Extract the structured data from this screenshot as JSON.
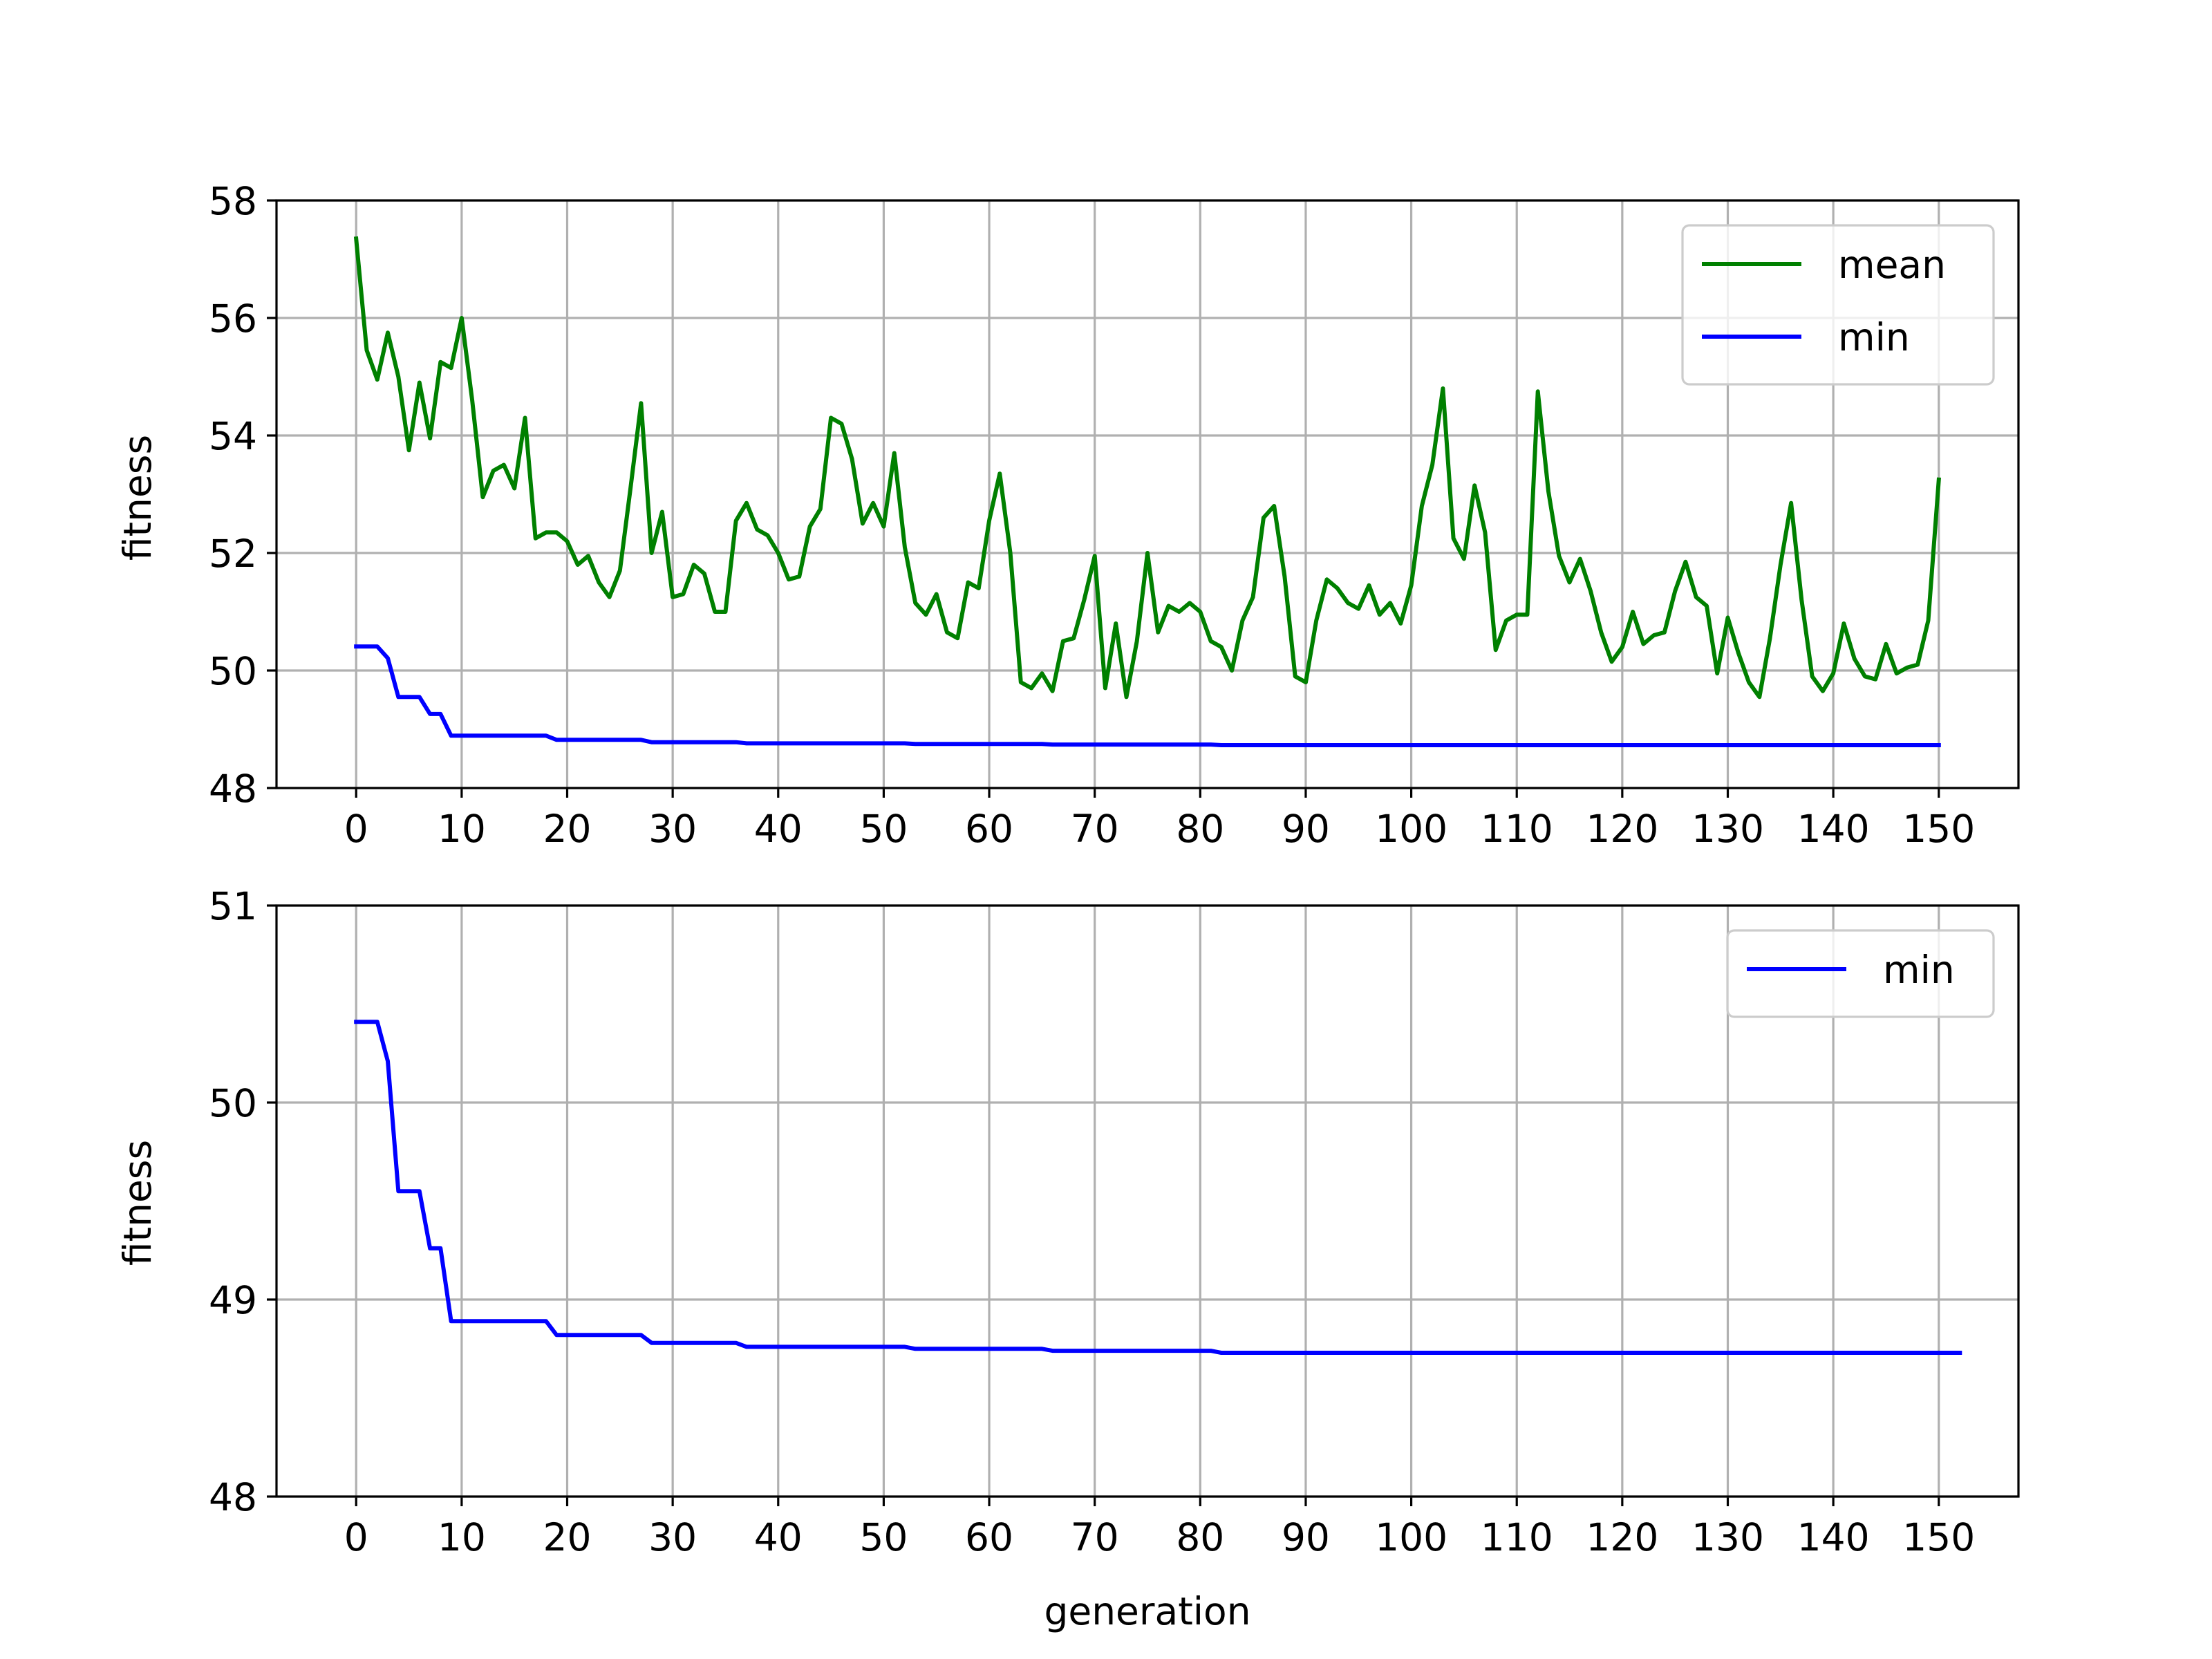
{
  "chart_data": [
    {
      "type": "line",
      "xlabel": "",
      "ylabel": "fitness",
      "xlim": [
        -7.55,
        157.55
      ],
      "ylim": [
        48,
        58
      ],
      "xticks": [
        0,
        10,
        20,
        30,
        40,
        50,
        60,
        70,
        80,
        90,
        100,
        110,
        120,
        130,
        140,
        150
      ],
      "yticks": [
        48,
        50,
        52,
        54,
        56,
        58
      ],
      "grid": true,
      "legend": "top-right",
      "series": [
        {
          "name": "mean",
          "color": "#008000",
          "values": [
            57.35,
            55.45,
            54.95,
            55.75,
            55.0,
            53.75,
            54.9,
            53.95,
            55.25,
            55.15,
            56.0,
            54.6,
            52.95,
            53.4,
            53.5,
            53.1,
            54.3,
            52.25,
            52.35,
            52.35,
            52.2,
            51.8,
            51.95,
            51.5,
            51.25,
            51.7,
            53.1,
            54.55,
            52.0,
            52.7,
            51.25,
            51.3,
            51.8,
            51.65,
            51.0,
            51.0,
            52.55,
            52.85,
            52.4,
            52.3,
            52.0,
            51.55,
            51.6,
            52.45,
            52.75,
            54.3,
            54.2,
            53.6,
            52.5,
            52.85,
            52.45,
            53.7,
            52.1,
            51.15,
            50.95,
            51.3,
            50.65,
            50.55,
            51.5,
            51.4,
            52.55,
            53.35,
            52.0,
            49.8,
            49.7,
            49.95,
            49.65,
            50.5,
            50.55,
            51.2,
            51.95,
            49.7,
            50.8,
            49.55,
            50.5,
            52.0,
            50.65,
            51.1,
            51.0,
            51.15,
            51.0,
            50.5,
            50.4,
            50.0,
            50.85,
            51.25,
            52.6,
            52.8,
            51.6,
            49.9,
            49.8,
            50.85,
            51.55,
            51.4,
            51.15,
            51.05,
            51.45,
            50.95,
            51.15,
            50.8,
            51.45,
            52.8,
            53.5,
            54.8,
            52.25,
            51.9,
            53.15,
            52.35,
            50.35,
            50.85,
            50.95,
            50.95,
            54.75,
            53.05,
            51.95,
            51.5,
            51.9,
            51.35,
            50.65,
            50.15,
            50.4,
            51.0,
            50.45,
            50.6,
            50.65,
            51.35,
            51.85,
            51.25,
            51.1,
            49.95,
            50.9,
            50.3,
            49.8,
            49.55,
            50.55,
            51.8,
            52.85,
            51.2,
            49.9,
            49.65,
            49.95,
            50.8,
            50.2,
            49.9,
            49.85,
            50.45,
            49.95,
            50.05,
            50.1,
            50.85,
            53.25
          ]
        },
        {
          "name": "min",
          "color": "#0000ff",
          "values": [
            50.41,
            50.41,
            50.41,
            50.21,
            49.55,
            49.55,
            49.55,
            49.26,
            49.26,
            48.89,
            48.89,
            48.89,
            48.89,
            48.89,
            48.89,
            48.89,
            48.89,
            48.89,
            48.89,
            48.82,
            48.82,
            48.82,
            48.82,
            48.82,
            48.82,
            48.82,
            48.82,
            48.82,
            48.78,
            48.78,
            48.78,
            48.78,
            48.78,
            48.78,
            48.78,
            48.78,
            48.78,
            48.76,
            48.76,
            48.76,
            48.76,
            48.76,
            48.76,
            48.76,
            48.76,
            48.76,
            48.76,
            48.76,
            48.76,
            48.76,
            48.76,
            48.76,
            48.76,
            48.75,
            48.75,
            48.75,
            48.75,
            48.75,
            48.75,
            48.75,
            48.75,
            48.75,
            48.75,
            48.75,
            48.75,
            48.75,
            48.74,
            48.74,
            48.74,
            48.74,
            48.74,
            48.74,
            48.74,
            48.74,
            48.74,
            48.74,
            48.74,
            48.74,
            48.74,
            48.74,
            48.74,
            48.74,
            48.73,
            48.73,
            48.73,
            48.73,
            48.73,
            48.73,
            48.73,
            48.73,
            48.73,
            48.73,
            48.73,
            48.73,
            48.73,
            48.73,
            48.73,
            48.73,
            48.73,
            48.73,
            48.73,
            48.73,
            48.73,
            48.73,
            48.73,
            48.73,
            48.73,
            48.73,
            48.73,
            48.73,
            48.73,
            48.73,
            48.73,
            48.73,
            48.73,
            48.73,
            48.73,
            48.73,
            48.73,
            48.73,
            48.73,
            48.73,
            48.73,
            48.73,
            48.73,
            48.73,
            48.73,
            48.73,
            48.73,
            48.73,
            48.73,
            48.73,
            48.73,
            48.73,
            48.73,
            48.73,
            48.73,
            48.73,
            48.73,
            48.73,
            48.73,
            48.73,
            48.73,
            48.73,
            48.73,
            48.73,
            48.73,
            48.73,
            48.73,
            48.73,
            48.73
          ]
        }
      ]
    },
    {
      "type": "line",
      "xlabel": "generation",
      "ylabel": "fitness",
      "xlim": [
        -7.55,
        157.55
      ],
      "ylim": [
        48,
        51
      ],
      "xticks": [
        0,
        10,
        20,
        30,
        40,
        50,
        60,
        70,
        80,
        90,
        100,
        110,
        120,
        130,
        140,
        150
      ],
      "yticks": [
        48,
        49,
        50,
        51
      ],
      "grid": true,
      "legend": "top-right",
      "series": [
        {
          "name": "min",
          "color": "#0000ff",
          "values": [
            50.41,
            50.41,
            50.41,
            50.21,
            49.55,
            49.55,
            49.55,
            49.26,
            49.26,
            48.89,
            48.89,
            48.89,
            48.89,
            48.89,
            48.89,
            48.89,
            48.89,
            48.89,
            48.89,
            48.82,
            48.82,
            48.82,
            48.82,
            48.82,
            48.82,
            48.82,
            48.82,
            48.82,
            48.78,
            48.78,
            48.78,
            48.78,
            48.78,
            48.78,
            48.78,
            48.78,
            48.78,
            48.76,
            48.76,
            48.76,
            48.76,
            48.76,
            48.76,
            48.76,
            48.76,
            48.76,
            48.76,
            48.76,
            48.76,
            48.76,
            48.76,
            48.76,
            48.76,
            48.75,
            48.75,
            48.75,
            48.75,
            48.75,
            48.75,
            48.75,
            48.75,
            48.75,
            48.75,
            48.75,
            48.75,
            48.75,
            48.74,
            48.74,
            48.74,
            48.74,
            48.74,
            48.74,
            48.74,
            48.74,
            48.74,
            48.74,
            48.74,
            48.74,
            48.74,
            48.74,
            48.74,
            48.74,
            48.73,
            48.73,
            48.73,
            48.73,
            48.73,
            48.73,
            48.73,
            48.73,
            48.73,
            48.73,
            48.73,
            48.73,
            48.73,
            48.73,
            48.73,
            48.73,
            48.73,
            48.73,
            48.73,
            48.73,
            48.73,
            48.73,
            48.73,
            48.73,
            48.73,
            48.73,
            48.73,
            48.73,
            48.73,
            48.73,
            48.73,
            48.73,
            48.73,
            48.73,
            48.73,
            48.73,
            48.73,
            48.73,
            48.73,
            48.73,
            48.73,
            48.73,
            48.73,
            48.73,
            48.73,
            48.73,
            48.73,
            48.73,
            48.73,
            48.73,
            48.73,
            48.73,
            48.73,
            48.73,
            48.73,
            48.73,
            48.73,
            48.73,
            48.73,
            48.73,
            48.73,
            48.73,
            48.73,
            48.73,
            48.73,
            48.73,
            48.73,
            48.73,
            48.73,
            48.73,
            48.73
          ]
        }
      ]
    }
  ]
}
